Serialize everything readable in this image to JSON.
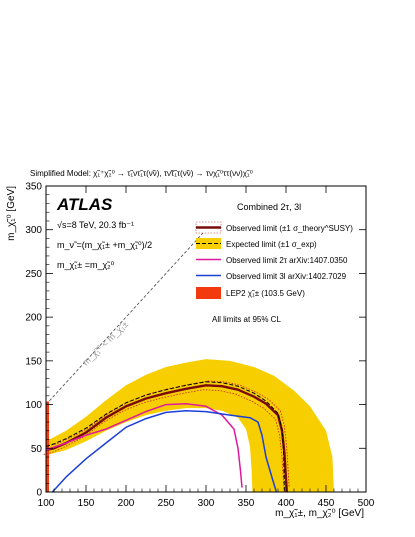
{
  "chart_data": {
    "type": "line",
    "title": "Simplified Model: χ̃₁⁺χ̃₂⁰ → τ̃₁ντ̃₁τ(ν̃ν), τν̃τ̃₁τ(ν̃ν) → τνχ̃₁⁰ττ(νν)χ̃₁⁰",
    "xlabel": "m_χ̃₁±, m_χ̃₂⁰ [GeV]",
    "ylabel": "m_χ̃₁⁰ [GeV]",
    "xlim": [
      100,
      500
    ],
    "ylim": [
      0,
      350
    ],
    "xticks": [
      100,
      150,
      200,
      250,
      300,
      350,
      400,
      450,
      500
    ],
    "yticks": [
      0,
      50,
      100,
      150,
      200,
      250,
      300,
      350
    ],
    "grid": false,
    "legend_position": "right",
    "series": [
      {
        "name": "Observed limit (±1 σ_theory^SUSY)",
        "style": "solid",
        "color": "#7a0b0b",
        "x": [
          100,
          110,
          125,
          150,
          175,
          200,
          225,
          250,
          275,
          300,
          320,
          340,
          360,
          375,
          390,
          395,
          398,
          400,
          401
        ],
        "y": [
          48,
          50,
          56,
          68,
          85,
          98,
          107,
          113,
          118,
          122,
          121,
          117,
          109,
          101,
          88,
          70,
          45,
          15,
          0
        ]
      },
      {
        "name": "Expected limit (±1 σ_exp)",
        "style": "dashed",
        "color": "#000000",
        "x": [
          100,
          110,
          125,
          150,
          175,
          200,
          225,
          250,
          275,
          300,
          320,
          340,
          360,
          375,
          390,
          395,
          397,
          398
        ],
        "y": [
          52,
          55,
          61,
          73,
          89,
          102,
          111,
          117,
          122,
          126,
          125,
          121,
          113,
          104,
          90,
          72,
          45,
          0
        ]
      },
      {
        "name": "Observed limit 2τ arXiv:1407.0350",
        "style": "solid",
        "color": "#e0189e",
        "x": [
          100,
          125,
          150,
          175,
          200,
          225,
          250,
          275,
          300,
          320,
          335,
          340,
          343,
          345
        ],
        "y": [
          48,
          56,
          65,
          72,
          82,
          92,
          100,
          101,
          98,
          88,
          72,
          50,
          25,
          5
        ]
      },
      {
        "name": "Observed limit 3l arXiv:1402.7029",
        "style": "solid",
        "color": "#1c3fd6",
        "x": [
          108,
          125,
          150,
          175,
          200,
          225,
          250,
          275,
          300,
          330,
          355,
          365,
          370,
          375,
          383,
          388
        ],
        "y": [
          0,
          17,
          38,
          56,
          74,
          84,
          91,
          93,
          92,
          88,
          85,
          80,
          65,
          40,
          15,
          0
        ]
      },
      {
        "name": "LEP2 χ̃₁± (103.5 GeV)",
        "style": "band",
        "color": "#f23a0e",
        "x": [
          100,
          103.5
        ],
        "y": [
          0,
          103.5
        ]
      }
    ],
    "expected_band": {
      "upper": {
        "x": [
          100,
          125,
          150,
          175,
          200,
          225,
          250,
          275,
          300,
          330,
          360,
          385,
          410,
          430,
          450,
          458,
          460
        ],
        "y": [
          58,
          70,
          86,
          105,
          122,
          134,
          143,
          148,
          152,
          150,
          143,
          133,
          116,
          98,
          70,
          40,
          0
        ]
      },
      "lower": {
        "x": [
          100,
          125,
          150,
          175,
          200,
          225,
          250,
          275,
          300,
          320,
          340,
          350,
          355,
          357,
          358
        ],
        "y": [
          42,
          48,
          58,
          70,
          80,
          88,
          93,
          96,
          96,
          93,
          85,
          72,
          52,
          25,
          0
        ]
      }
    },
    "annotations": {
      "logo": "ATLAS",
      "energy": "√s=8 TeV, 20.3 fb⁻¹",
      "mass_relation_1": "m_ν̃ =(m_χ̃₁± +m_χ̃₁⁰)/2",
      "mass_relation_2": "m_χ̃₁± =m_χ̃₂⁰",
      "channel": "Combined 2τ, 3l",
      "cl_note": "All limits at 95% CL",
      "diagonal_label": "m_χ̃₁⁰ < m_χ̃₁±"
    }
  }
}
